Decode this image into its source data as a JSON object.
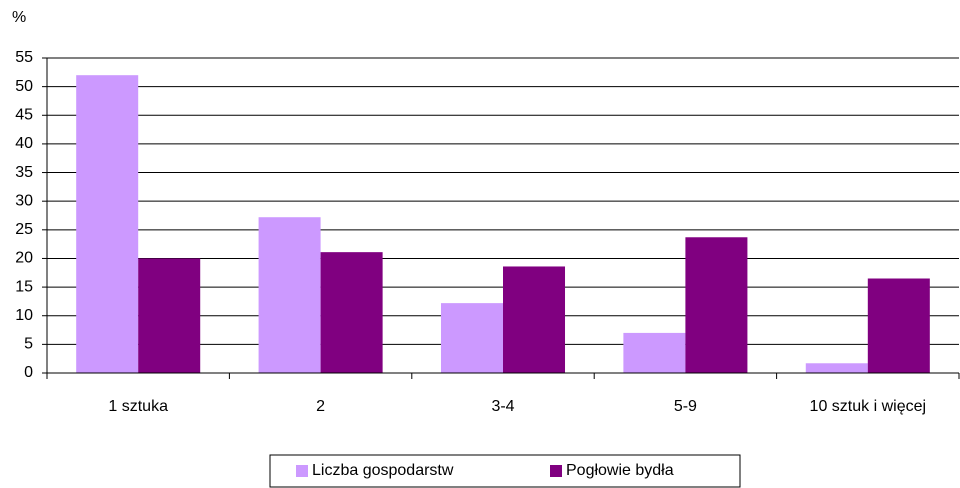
{
  "chart_data": {
    "type": "bar",
    "y_label": "%",
    "categories": [
      "1 sztuka",
      "2",
      "3-4",
      "5-9",
      "10 sztuk i więcej"
    ],
    "series": [
      {
        "name": "Liczba gospodarstw",
        "color": "#cc99ff",
        "values": [
          52,
          27.2,
          12.2,
          7,
          1.7
        ]
      },
      {
        "name": "Pogłowie bydła",
        "color": "#800080",
        "values": [
          20,
          21.1,
          18.6,
          23.7,
          16.5
        ]
      }
    ],
    "ylim": [
      0,
      55
    ],
    "yticks": [
      0,
      5,
      10,
      15,
      20,
      25,
      30,
      35,
      40,
      45,
      50,
      55
    ],
    "grid": true,
    "legend": "bottom"
  }
}
